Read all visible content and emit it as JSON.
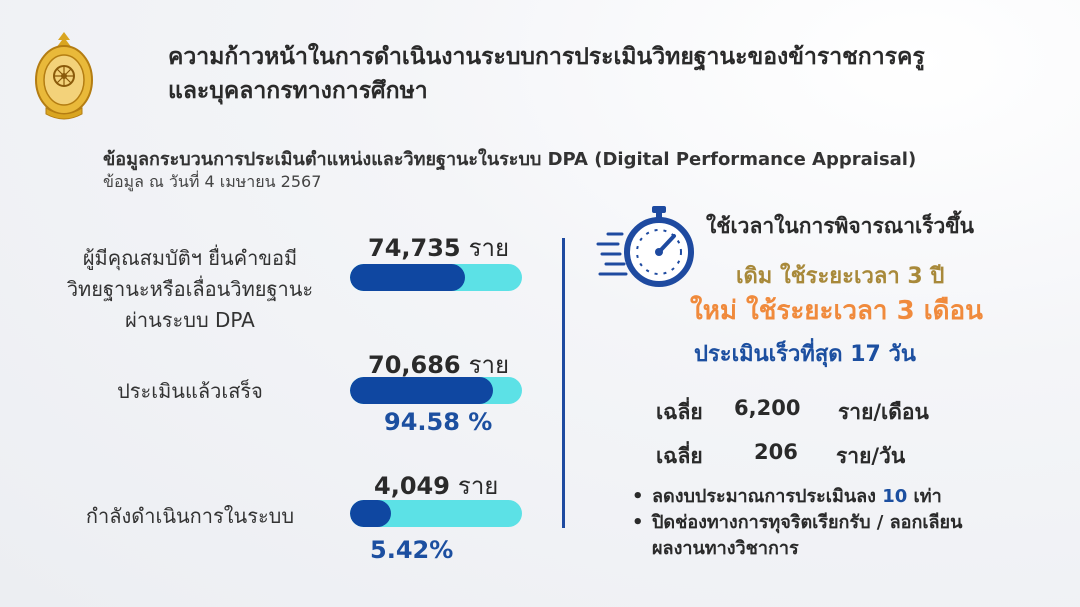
{
  "title": {
    "line1": "ความก้าวหน้าในการดำเนินงานระบบการประเมินวิทยฐานะของข้าราชการครู",
    "line2": "และบุคลากรทางการศึกษา"
  },
  "subtitle": "ข้อมูลกระบวนการประเมินตำแหน่งและวิทยฐานะในระบบ DPA (Digital Performance Appraisal)",
  "date_note": "ข้อมูล ณ วันที่ 4 เมษายน 2567",
  "metrics": [
    {
      "label_lines": [
        "ผู้มีคุณสมบัติฯ ยื่นคำขอมี",
        "วิทยฐานะหรือเลื่อนวิทยฐานะ",
        "ผ่านระบบ DPA"
      ],
      "count": "74,735",
      "unit": "ราย",
      "bar_fraction": 0.67
    },
    {
      "label_lines": [
        "ประเมินแล้วเสร็จ"
      ],
      "count": "70,686",
      "unit": "ราย",
      "percent": "94.58 %",
      "bar_fraction": 0.83
    },
    {
      "label_lines": [
        "กำลังดำเนินการในระบบ"
      ],
      "count": "4,049",
      "unit": "ราย",
      "percent": "5.42%",
      "bar_fraction": 0.24
    }
  ],
  "right": {
    "heading": "ใช้เวลาในการพิจารณาเร็วขึ้น",
    "old": "เดิม ใช้ระยะเวลา 3 ปี",
    "new": "ใหม่ ใช้ระยะเวลา 3 เดือน",
    "fastest": "ประเมินเร็วที่สุด  17  วัน",
    "averages": [
      {
        "label": "เฉลี่ย",
        "value": "6,200",
        "unit": "ราย/เดือน"
      },
      {
        "label": "เฉลี่ย",
        "value": "206",
        "unit": "ราย/วัน"
      }
    ],
    "bullet1_prefix": "ลดงบประมาณการประเมินลง ",
    "bullet1_highlight": "10",
    "bullet1_suffix": " เท่า",
    "bullet2_line1": "ปิดช่องทางการทุจริตเรียกรับ / ลอกเลียน",
    "bullet2_line2": "ผลงานทางวิชาการ"
  },
  "colors": {
    "bar_fill": "#0f47a1",
    "bar_track": "#5ce1e6",
    "accent_blue": "#1c4fa0",
    "old_gold": "#a8893a",
    "new_orange": "#f08a3c"
  },
  "icons": [
    "ministry-emblem",
    "stopwatch-icon"
  ]
}
